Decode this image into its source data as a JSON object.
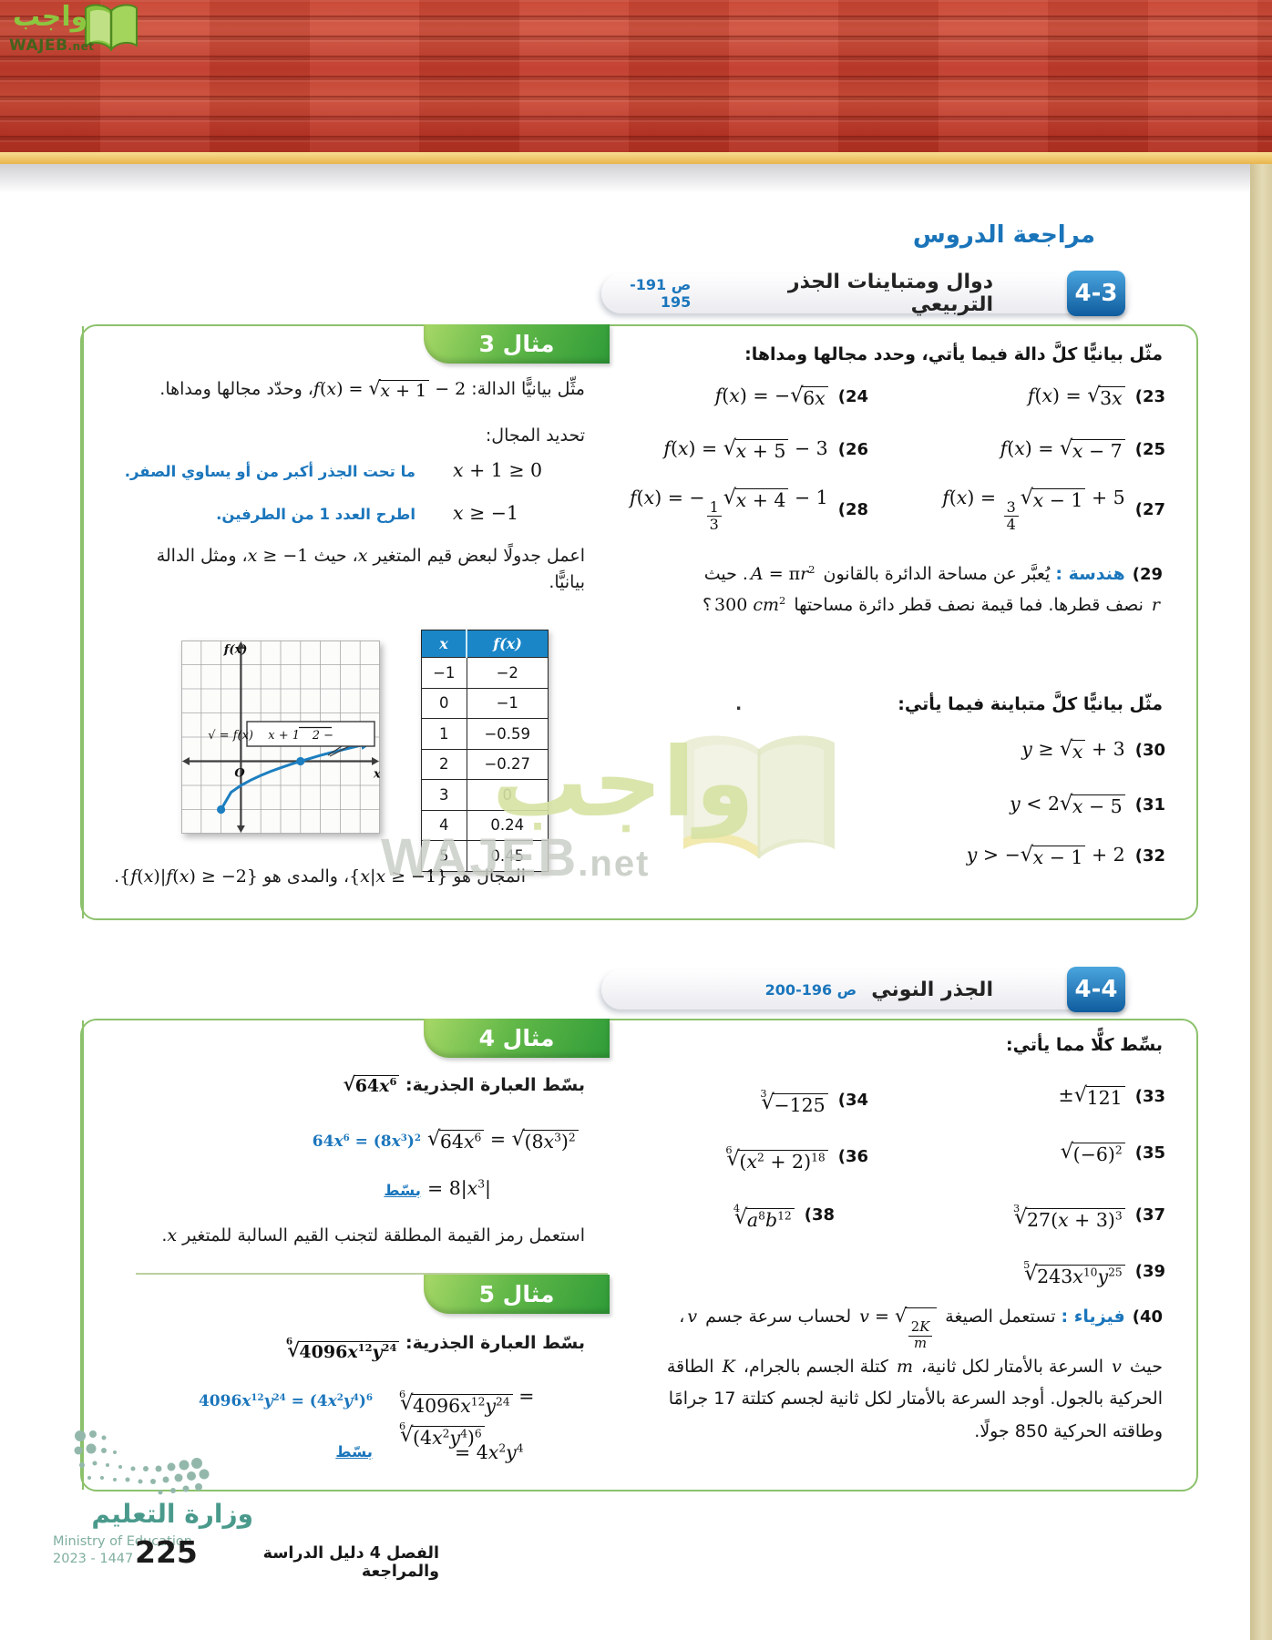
{
  "brand": {
    "logo_ar": "واجب",
    "logo_domain": "WAJEB",
    "logo_tld": ".net"
  },
  "page": {
    "review_title": "مراجعة الدروس",
    "page_number": "225",
    "footer_chapter": "الفصل 4  دليل الدراسة والمراجعة",
    "ministry_ar": "وزارة التعليم",
    "ministry_en": "Ministry of Education",
    "ministry_years": "2023 - 1447"
  },
  "watermark": {
    "ar": "واجب",
    "en": "WAJEB",
    "tld": ".net"
  },
  "section43": {
    "badge": "4-3",
    "title": "دوال ومتباينات الجذر التربيعي",
    "pages": "ص 191-195"
  },
  "section44": {
    "badge": "4-4",
    "title": "الجذر النوني",
    "pages": "ص 196-200"
  },
  "example3": {
    "tab": "مثال 3",
    "intro": [
      {
        "ar": "مثِّل بيانيًّا الدالة: "
      },
      {
        "m": "f(x) = √{x + 1} − 2"
      },
      {
        "ar": "، وحدّد مجالها ومداها."
      }
    ],
    "domain_heading": "تحديد المجال:",
    "step1": {
      "eq": "x + 1 ≥ 0",
      "note": "ما تحت الجذر أكبر من أو يساوي الصفر."
    },
    "step2": {
      "eq": "x ≥ −1",
      "note": "اطرح العدد 1 من الطرفين."
    },
    "table_note": [
      {
        "ar": "اعمل جدولًا لبعض قيم المتغير "
      },
      {
        "m": "x"
      },
      {
        "ar": "، حيث "
      },
      {
        "m": "x ≥ −1"
      },
      {
        "ar": "، ومثل الدالة بيانيًّا."
      }
    ],
    "graph": {
      "ylabel": "f(x)",
      "xlabel": "x",
      "origin": "O",
      "curve_label_pre": "f(x) = √",
      "curve_label_rad": "x + 1",
      "curve_label_post": " − 2",
      "curve_points": [
        [
          -1,
          -2
        ],
        [
          -0.5,
          -1.29
        ],
        [
          0,
          -1
        ],
        [
          0.5,
          -0.78
        ],
        [
          1,
          -0.59
        ],
        [
          1.5,
          -0.42
        ],
        [
          2,
          -0.27
        ],
        [
          2.5,
          -0.13
        ],
        [
          3,
          0
        ],
        [
          3.5,
          0.12
        ],
        [
          4,
          0.24
        ],
        [
          4.5,
          0.35
        ],
        [
          5,
          0.45
        ],
        [
          5.5,
          0.55
        ],
        [
          6,
          0.65
        ],
        [
          6.5,
          0.74
        ]
      ],
      "dots": [
        [
          -1,
          -2
        ],
        [
          3,
          0
        ]
      ]
    },
    "table": {
      "headers": [
        "x",
        "f(x)"
      ],
      "rows": [
        [
          "−1",
          "−2"
        ],
        [
          "0",
          "−1"
        ],
        [
          "1",
          "−0.59"
        ],
        [
          "2",
          "−0.27"
        ],
        [
          "3",
          "0"
        ],
        [
          "4",
          "0.24"
        ],
        [
          "5",
          "0.45"
        ]
      ]
    },
    "conclusion": [
      {
        "ar": "المجال هو "
      },
      {
        "m": "{x|x ≥ −1}"
      },
      {
        "ar": "، والمدى هو "
      },
      {
        "m": "{f(x)|f(x) ≥ −2}"
      },
      {
        "ar": "."
      }
    ]
  },
  "exercises43": {
    "instr1": "مثّل بيانيًّا كلَّ دالة فيما يأتي، وحدد مجالها ومداها:",
    "e23": {
      "n": "(23",
      "m": "f(x) = √{3x}"
    },
    "e24": {
      "n": "(24",
      "m": "f(x) = −√{6x}"
    },
    "e25": {
      "n": "(25",
      "m": "f(x) = √{x − 7}"
    },
    "e26": {
      "n": "(26",
      "m": "f(x) = √{x + 5} − 3"
    },
    "e27": {
      "n": "(27",
      "m": "f(x) = frac{3}{4}√{x − 1} + 5"
    },
    "e28": {
      "n": "(28",
      "m": "f(x) = −frac{1}{3}√{x + 4} − 1"
    },
    "e29": {
      "n": "(29",
      "label": "هندسة :",
      "body": [
        {
          "ar": "يُعبَّر عن مساحة الدائرة بالقانون "
        },
        {
          "m": "A = πr^{2}"
        },
        {
          "ar": ". حيث "
        },
        {
          "m": "r"
        },
        {
          "ar": " نصف قطرها. فما قيمة نصف قطر دائرة مساحتها "
        },
        {
          "m": "300 cm^{2}"
        },
        {
          "ar": "؟"
        }
      ]
    },
    "instr2": "مثّل بيانيًّا كلَّ متباينة فيما يأتي:",
    "instr2_stray": ".",
    "e30": {
      "n": "(30",
      "m": "y ≥ √{x} + 3"
    },
    "e31": {
      "n": "(31",
      "m": "y < 2√{x − 5}"
    },
    "e32": {
      "n": "(32",
      "m": "y > −√{x − 1} + 2"
    }
  },
  "example4": {
    "tab": "مثال 4",
    "intro": [
      {
        "ar": "بسّط العبارة الجذرية:  "
      },
      {
        "m": "√{64x^{6}}"
      }
    ],
    "step1": {
      "eq": "√{64x^{6}} = √{(8x^{3})^{2}}",
      "note_math": "64x^{6} = (8x^{3})^{2}"
    },
    "step2": {
      "eq": "= 8|x^{3}|",
      "note": "بسّط"
    },
    "footnote": [
      {
        "ar": "استعمل رمز القيمة المطلقة لتجنب القيم السالبة للمتغير "
      },
      {
        "m": "x"
      },
      {
        "ar": "."
      }
    ]
  },
  "example5": {
    "tab": "مثال 5",
    "intro": [
      {
        "ar": "بسّط العبارة الجذرية:  "
      },
      {
        "m": "√[6]{4096x^{12}y^{24}}"
      }
    ],
    "step1": {
      "eq": "√[6]{4096x^{12}y^{24}} = √[6]{(4x^{2}y^{4})^{6}}",
      "note_math": "4096x^{12}y^{24} = (4x^{2}y^{4})^{6}"
    },
    "step2": {
      "eq": "= 4x^{2}y^{4}",
      "note": "بسّط"
    }
  },
  "exercises44": {
    "instr": "بسِّط كلًّا مما يأتي:",
    "e33": {
      "n": "(33",
      "m": "±√{121}"
    },
    "e34": {
      "n": "(34",
      "m": "√[3]{−125}"
    },
    "e35": {
      "n": "(35",
      "m": "√{(−6)^{2}}"
    },
    "e36": {
      "n": "(36",
      "m": "√[6]{(x^{2} + 2)^{18}}"
    },
    "e37": {
      "n": "(37",
      "m": "√[3]{27(x + 3)^{3}}"
    },
    "e38": {
      "n": "(38",
      "m": "√[4]{a^{8}b^{12}}"
    },
    "e39": {
      "n": "(39",
      "m": "√[5]{243x^{10}y^{25}}"
    },
    "e40": {
      "n": "(40",
      "label": "فيزياء :",
      "body": [
        {
          "ar": "تستعمل الصيغة "
        },
        {
          "m": "v = √{frac{2K}{m}}"
        },
        {
          "ar": " لحساب سرعة جسم "
        },
        {
          "m": "v"
        },
        {
          "ar": "، حيث "
        },
        {
          "m": "v"
        },
        {
          "ar": " السرعة بالأمتار لكل ثانية، "
        },
        {
          "m": "m"
        },
        {
          "ar": " كتلة الجسم بالجرام، "
        },
        {
          "m": "K"
        },
        {
          "ar": " الطاقة الحركية بالجول. أوجد السرعة بالأمتار لكل ثانية لجسم كتلتة 17 جرامًا وطاقته الحركية 850 جولًا."
        }
      ]
    }
  }
}
